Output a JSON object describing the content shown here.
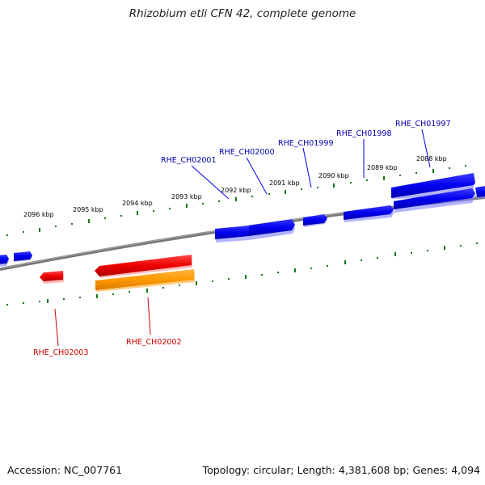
{
  "title": "Rhizobium etli CFN 42, complete genome",
  "accession_text": "Accession: NC_007761",
  "topology_text": "Topology: circular; Length: 4,381,608 bp; Genes: 4,094",
  "kbp_labels": [
    "2096 kbp",
    "2095 kbp",
    "2094 kbp",
    "2093 kbp",
    "2092 kbp",
    "2091 kbp",
    "2090 kbp",
    "2089 kbp",
    "2088 kbp"
  ],
  "forward_gene_labels": [
    "RHE_CH02001",
    "RHE_CH02000",
    "RHE_CH01999",
    "RHE_CH01998",
    "RHE_CH01997"
  ],
  "reverse_gene_labels": [
    "RHE_CH02003",
    "RHE_CH02002"
  ],
  "colors": {
    "forward_gene": "#0000ee",
    "reverse_gene": "#ee0000",
    "orange_feature": "#ff9900",
    "tick": "#127a12",
    "backbone": "#7a7a7a",
    "forward_label": "#0000aa",
    "reverse_label": "#cc0000"
  }
}
